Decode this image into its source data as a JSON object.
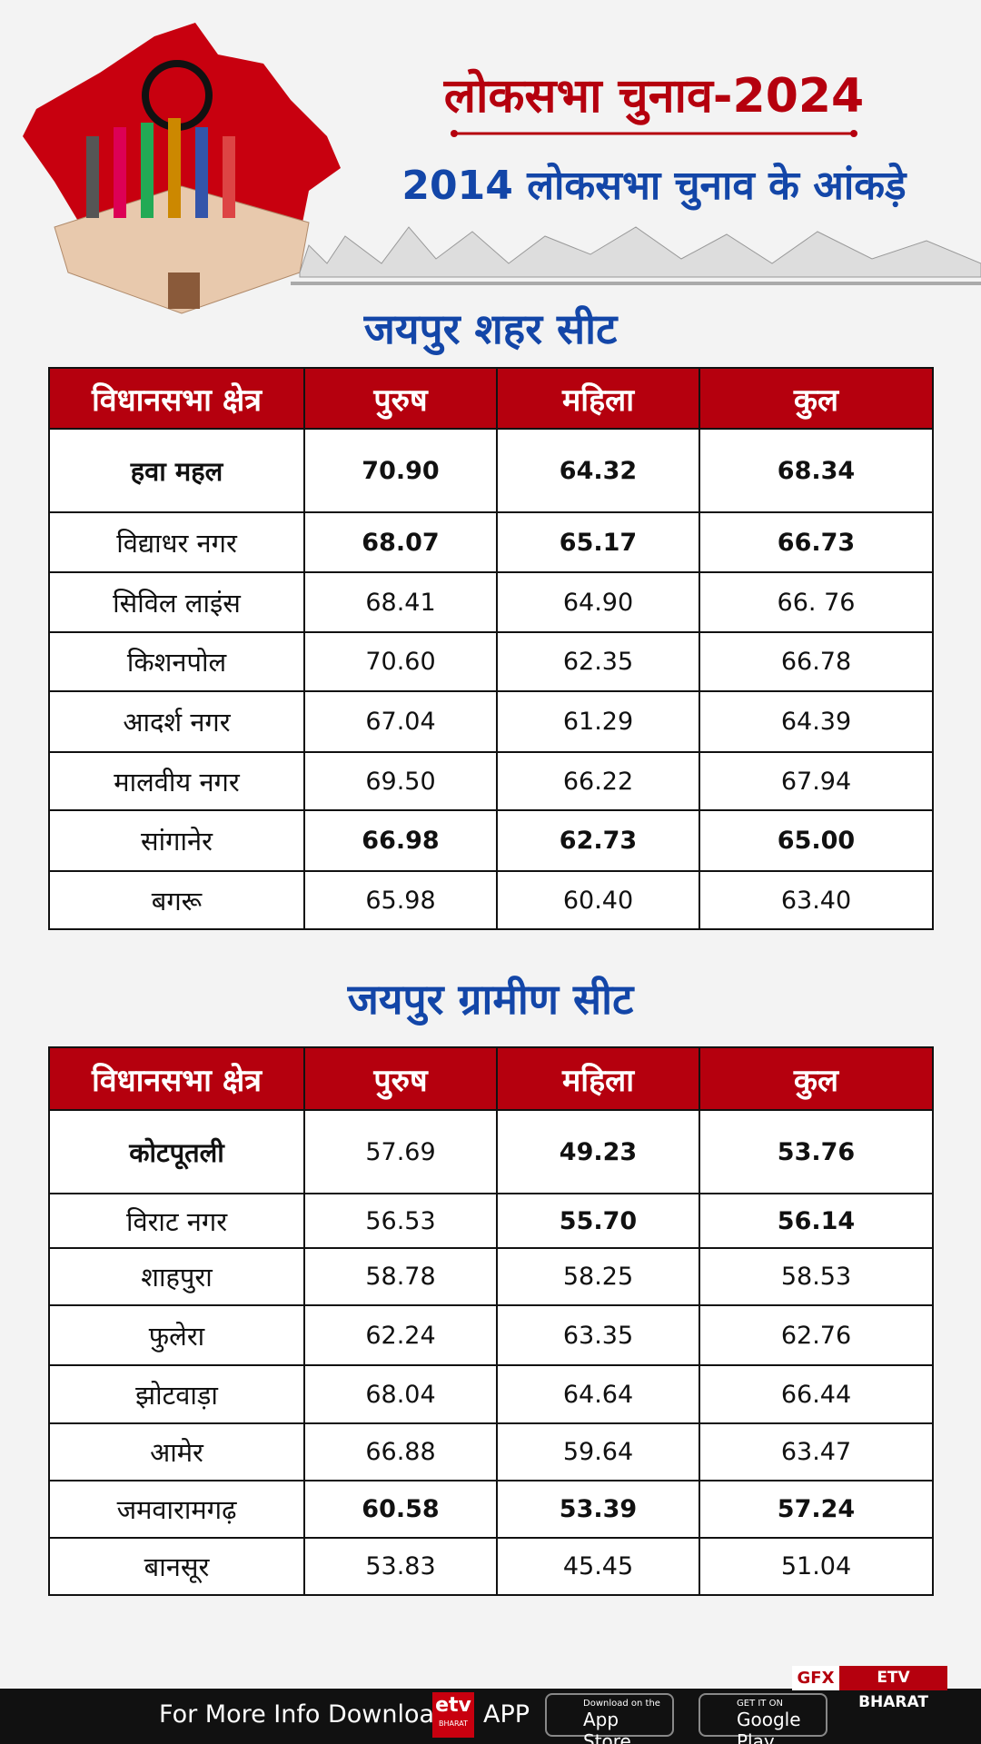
{
  "header": {
    "title": "लोकसभा चुनाव-2024",
    "subtitle": "2014 लोकसभा चुनाव के आंकड़े"
  },
  "tables": [
    {
      "title": "जयपुर शहर सीट",
      "columns": [
        "विधानसभा क्षेत्र",
        "पुरुष",
        "महिला",
        "कुल"
      ],
      "rows": [
        [
          "हवा महल",
          "70.90",
          "64.32",
          "68.34"
        ],
        [
          "विद्याधर नगर",
          "68.07",
          "65.17",
          "66.73"
        ],
        [
          "सिविल लाइंस",
          "68.41",
          "64.90",
          "66. 76"
        ],
        [
          "किशनपोल",
          "70.60",
          "62.35",
          "66.78"
        ],
        [
          "आदर्श नगर",
          "67.04",
          "61.29",
          "64.39"
        ],
        [
          "मालवीय नगर",
          "69.50",
          "66.22",
          "67.94"
        ],
        [
          "सांगानेर",
          "66.98",
          "62.73",
          "65.00"
        ],
        [
          "बगरू",
          "65.98",
          "60.40",
          "63.40"
        ]
      ]
    },
    {
      "title": "जयपुर ग्रामीण सीट",
      "columns": [
        "विधानसभा क्षेत्र",
        "पुरुष",
        "महिला",
        "कुल"
      ],
      "rows": [
        [
          "कोटपूतली",
          "57.69",
          "49.23",
          "53.76"
        ],
        [
          "विराट नगर",
          "56.53",
          "55.70",
          "56.14"
        ],
        [
          "शाहपुरा",
          "58.78",
          "58.25",
          "58.53"
        ],
        [
          "फुलेरा",
          "62.24",
          "63.35",
          "62.76"
        ],
        [
          "झोटवाड़ा",
          "68.04",
          "64.64",
          "66.44"
        ],
        [
          "आमेर",
          "66.88",
          "59.64",
          "63.47"
        ],
        [
          "जमवारामगढ़",
          "60.58",
          "53.39",
          "57.24"
        ],
        [
          "बानसूर",
          "53.83",
          "45.45",
          "51.04"
        ]
      ]
    }
  ],
  "footer": {
    "badge_left": "GFX",
    "badge_right": "ETV BHARAT",
    "text": "For More Info Download",
    "logo_top": "etv",
    "logo_bottom": "BHARAT",
    "app": "APP",
    "appstore_small": "Download on the",
    "appstore": "App Store",
    "google_small": "GET IT ON",
    "google": "Google Play"
  }
}
